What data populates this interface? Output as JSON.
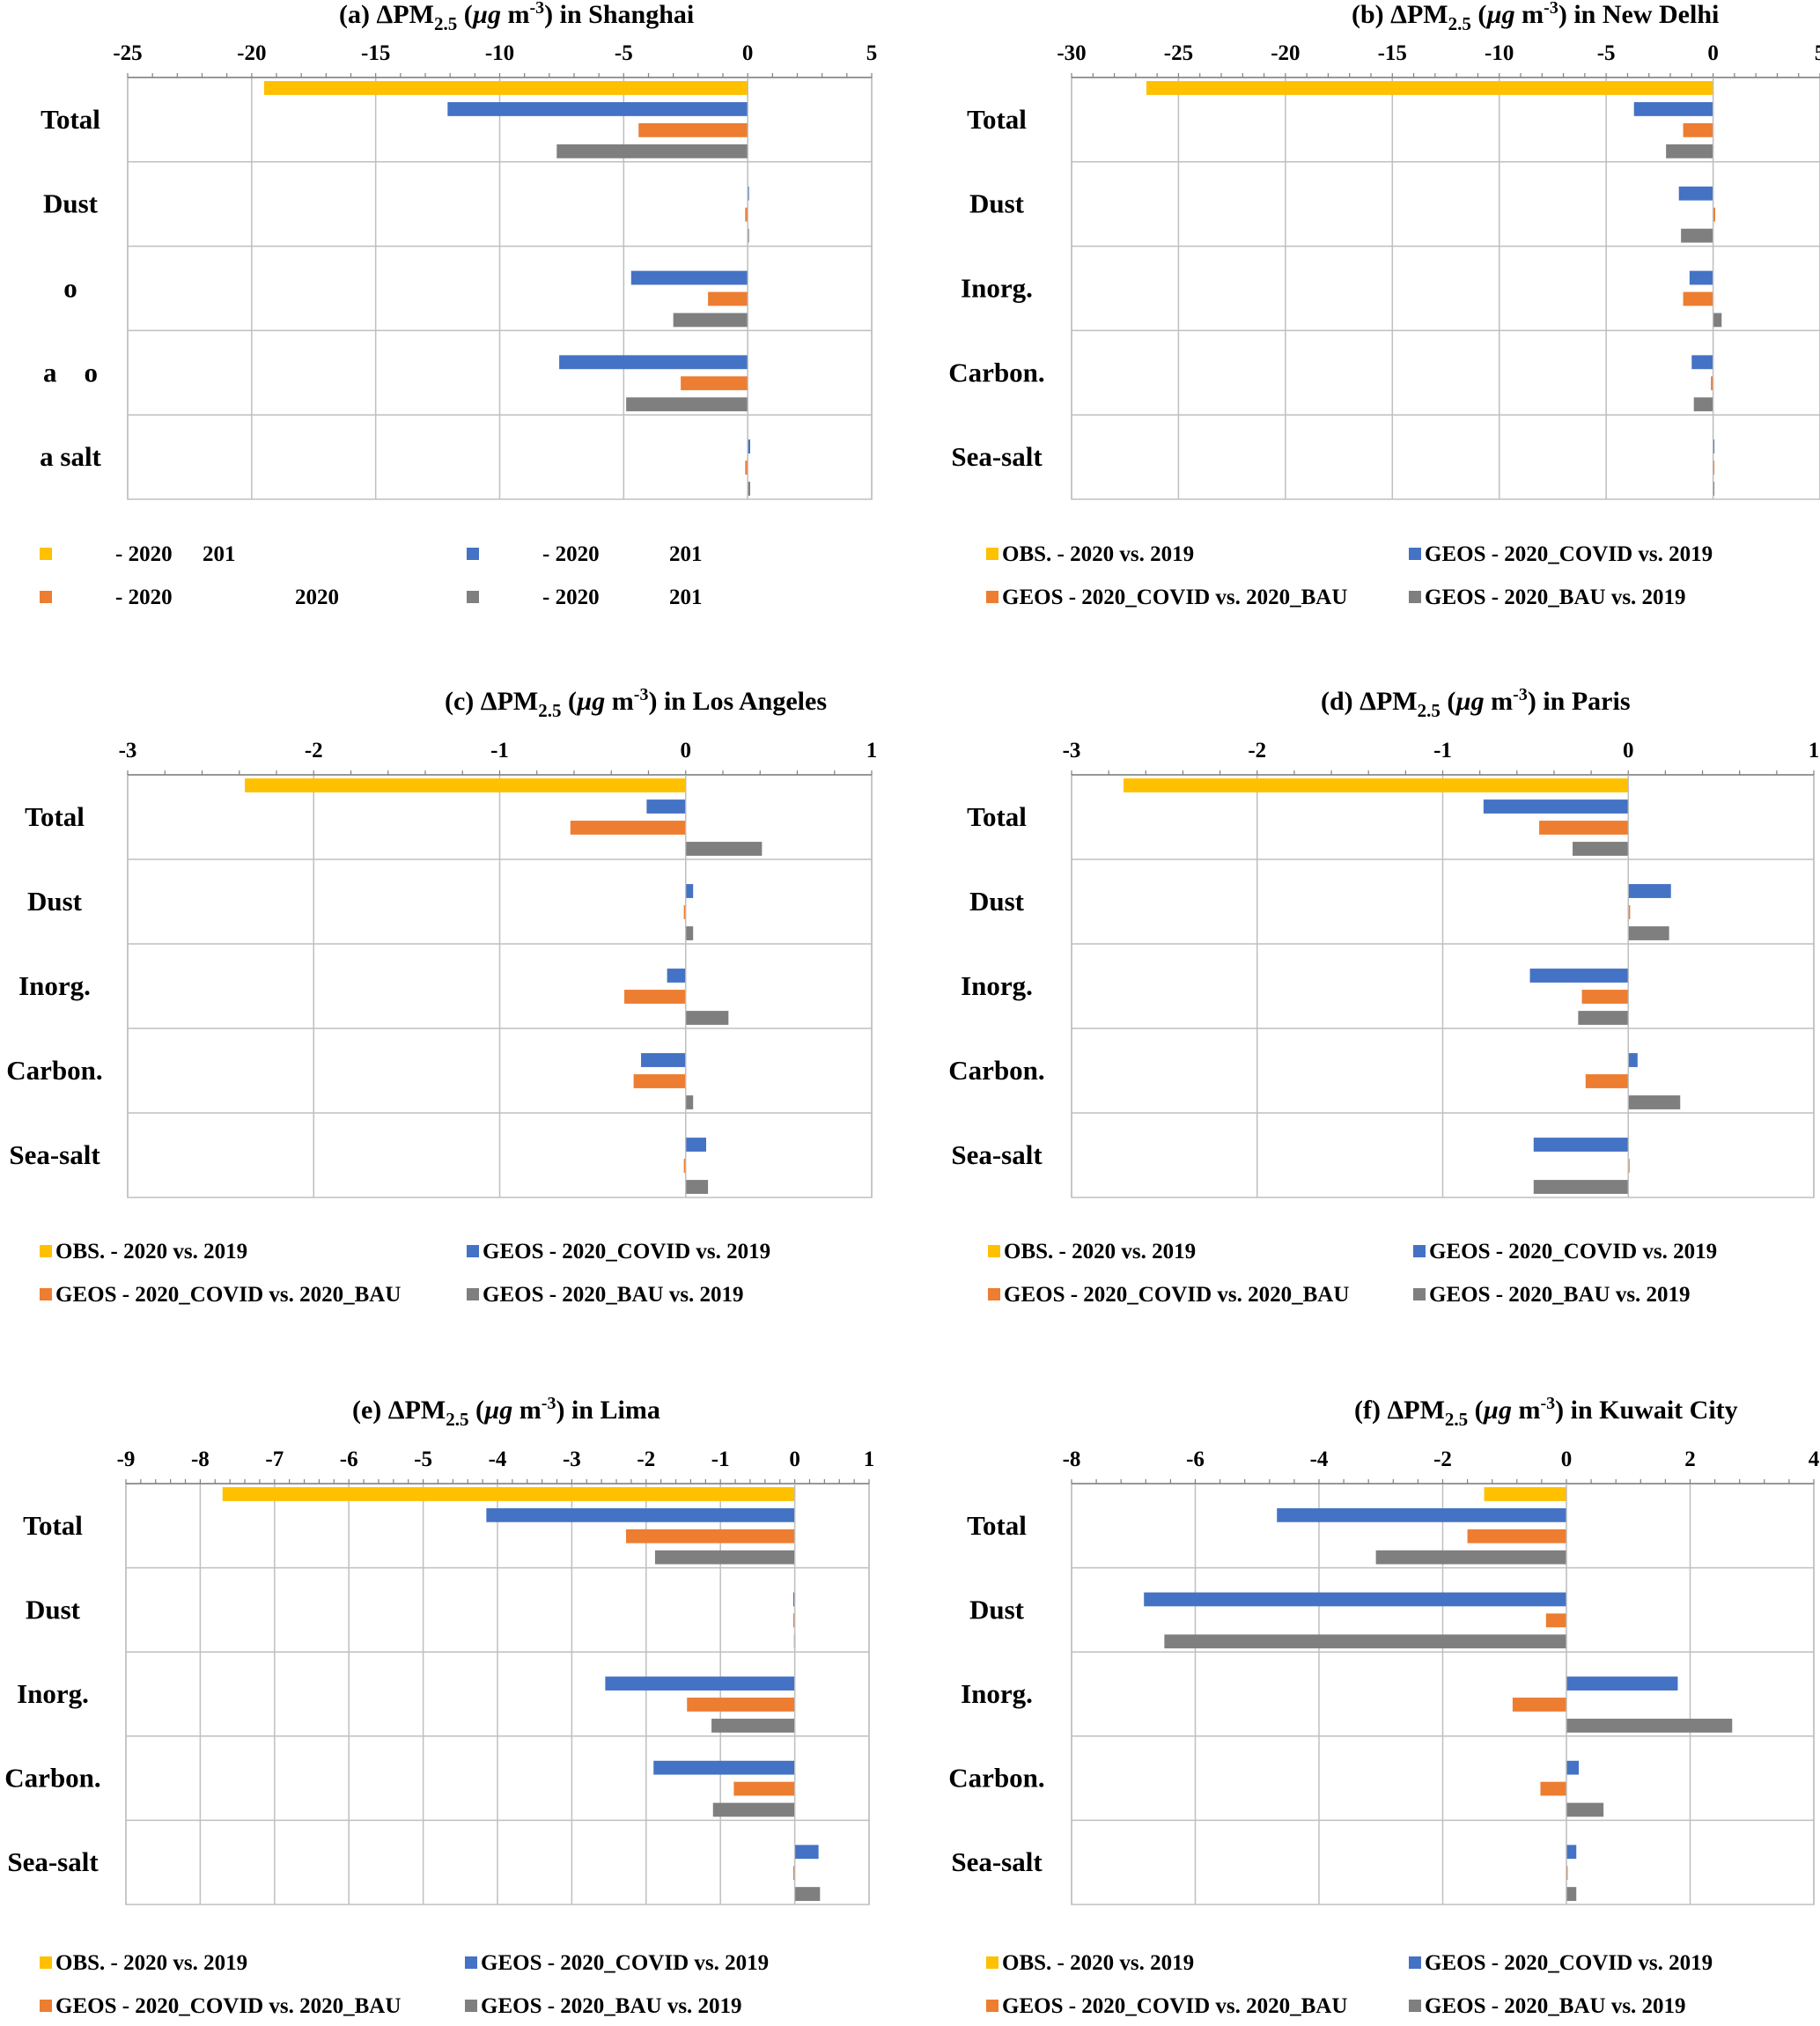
{
  "figure": {
    "legend_labels": [
      "OBS. -  2020 vs. 2019",
      "GEOS - 2020_COVID vs. 2019",
      "GEOS - 2020_COVID vs. 2020_BAU",
      "GEOS - 2020_BAU vs. 2019"
    ],
    "colors": {
      "obs": "#FFC000",
      "covid_vs_2019": "#4472C4",
      "covid_vs_bau": "#ED7D31",
      "bau_vs_2019": "#7F7F7F",
      "grid": "#BFBFBF"
    },
    "categories": [
      "Total",
      "Dust",
      "Inorg.",
      "Carbon.",
      "Sea-salt"
    ]
  },
  "chart_data": [
    {
      "panel": "a",
      "type": "bar",
      "orientation": "horizontal",
      "title": "(a) ΔPM2.5 (µg m-3) in Shanghai",
      "title_parts": {
        "prefix": "(a) ΔPM",
        "sub": "2.5",
        "unit_mid": " m",
        "unit_sup": "-3",
        "place": ") in Shanghai"
      },
      "categories": [
        "Total",
        "Dust",
        "o",
        "a    o",
        "a salt"
      ],
      "xlim": [
        -25,
        5
      ],
      "xticks": [
        -25,
        -20,
        -15,
        -10,
        -5,
        0,
        5
      ],
      "series": [
        {
          "name": "-  2020      201",
          "values": [
            -19.5,
            null,
            null,
            null,
            null
          ]
        },
        {
          "name": "- 2020                201",
          "values": [
            -12.1,
            0.05,
            -4.7,
            -7.6,
            0.1
          ]
        },
        {
          "name": "- 2020             2020",
          "values": [
            -4.4,
            -0.1,
            -1.6,
            -2.7,
            -0.1
          ]
        },
        {
          "name": "- 2020          201",
          "values": [
            -7.7,
            0.05,
            -3.0,
            -4.9,
            0.1
          ]
        }
      ],
      "legend": [
        {
          "text": "-  2020",
          "text2": "201",
          "color": "#FFC000"
        },
        {
          "text": "- 2020",
          "text2": "201",
          "color": "#4472C4"
        },
        {
          "text": "- 2020",
          "text2": "2020",
          "color": "#ED7D31"
        },
        {
          "text": "- 2020",
          "text2": "201",
          "color": "#7F7F7F"
        }
      ]
    },
    {
      "panel": "b",
      "type": "bar",
      "orientation": "horizontal",
      "title": "(b) ΔPM2.5 (µg m-3) in New Delhi",
      "title_parts": {
        "prefix": "(b) ΔPM",
        "sub": "2.5",
        "unit_mid": " m",
        "unit_sup": "-3",
        "place": ")  in New Delhi"
      },
      "categories": [
        "Total",
        "Dust",
        "Inorg.",
        "Carbon.",
        "Sea-salt"
      ],
      "xlim": [
        -30,
        5
      ],
      "xticks": [
        -30,
        -25,
        -20,
        -15,
        -10,
        -5,
        0,
        5
      ],
      "series": [
        {
          "name": "OBS. -  2020 vs. 2019",
          "values": [
            -26.5,
            null,
            null,
            null,
            null
          ]
        },
        {
          "name": "GEOS - 2020_COVID vs. 2019",
          "values": [
            -3.7,
            -1.6,
            -1.1,
            -1.0,
            0.0
          ]
        },
        {
          "name": "GEOS - 2020_COVID vs. 2020_BAU",
          "values": [
            -1.4,
            0.1,
            -1.4,
            -0.1,
            0.0
          ]
        },
        {
          "name": "GEOS - 2020_BAU vs. 2019",
          "values": [
            -2.2,
            -1.5,
            0.4,
            -0.9,
            0.0
          ]
        }
      ]
    },
    {
      "panel": "c",
      "type": "bar",
      "orientation": "horizontal",
      "title": "(c) ΔPM2.5 (µg m-3) in Los Angeles",
      "title_parts": {
        "prefix": "(c) ΔPM",
        "sub": "2.5",
        "unit_mid": " m",
        "unit_sup": "-3",
        "place": ") in Los Angeles"
      },
      "categories": [
        "Total",
        "Dust",
        "Inorg.",
        "Carbon.",
        "Sea-salt"
      ],
      "xlim": [
        -3,
        1
      ],
      "xticks": [
        -3,
        -2,
        -1,
        0,
        1
      ],
      "series": [
        {
          "name": "OBS. -  2020 vs. 2019",
          "values": [
            -2.37,
            null,
            null,
            null,
            null
          ]
        },
        {
          "name": "GEOS - 2020_COVID vs. 2019",
          "values": [
            -0.21,
            0.04,
            -0.1,
            -0.24,
            0.11
          ]
        },
        {
          "name": "GEOS - 2020_COVID vs. 2020_BAU",
          "values": [
            -0.62,
            -0.01,
            -0.33,
            -0.28,
            -0.01
          ]
        },
        {
          "name": "GEOS - 2020_BAU vs. 2019",
          "values": [
            0.41,
            0.04,
            0.23,
            0.04,
            0.12
          ]
        }
      ]
    },
    {
      "panel": "d",
      "type": "bar",
      "orientation": "horizontal",
      "title": "(d) ΔPM2.5 (µg m-3) in Paris",
      "title_parts": {
        "prefix": "(d) ΔPM",
        "sub": "2.5",
        "unit_mid": " m",
        "unit_sup": "-3",
        "place": ") in Paris"
      },
      "categories": [
        "Total",
        "Dust",
        "Inorg.",
        "Carbon.",
        "Sea-salt"
      ],
      "xlim": [
        -3,
        1
      ],
      "xticks": [
        -3,
        -2,
        -1,
        0,
        1
      ],
      "series": [
        {
          "name": "OBS. -  2020 vs. 2019",
          "values": [
            -2.72,
            null,
            null,
            null,
            null
          ]
        },
        {
          "name": "GEOS - 2020_COVID vs. 2019",
          "values": [
            -0.78,
            0.23,
            -0.53,
            0.05,
            -0.51
          ]
        },
        {
          "name": "GEOS - 2020_COVID vs. 2020_BAU",
          "values": [
            -0.48,
            0.01,
            -0.25,
            -0.23,
            0.0
          ]
        },
        {
          "name": "GEOS - 2020_BAU vs. 2019",
          "values": [
            -0.3,
            0.22,
            -0.27,
            0.28,
            -0.51
          ]
        }
      ]
    },
    {
      "panel": "e",
      "type": "bar",
      "orientation": "horizontal",
      "title": "(e) ΔPM2.5 (µg m-3) in Lima",
      "title_parts": {
        "prefix": "(e) ΔPM",
        "sub": "2.5",
        "unit_mid": " m",
        "unit_sup": "-3",
        "place": ") in Lima"
      },
      "categories": [
        "Total",
        "Dust",
        "Inorg.",
        "Carbon.",
        "Sea-salt"
      ],
      "xlim": [
        -9,
        1
      ],
      "xticks": [
        -9,
        -8,
        -7,
        -6,
        -5,
        -4,
        -3,
        -2,
        -1,
        0,
        1
      ],
      "series": [
        {
          "name": "OBS. -  2020 vs. 2019",
          "values": [
            -7.7,
            null,
            null,
            null,
            null
          ]
        },
        {
          "name": "GEOS - 2020_COVID vs. 2019",
          "values": [
            -4.15,
            -0.02,
            -2.55,
            -1.9,
            0.32
          ]
        },
        {
          "name": "GEOS - 2020_COVID vs. 2020_BAU",
          "values": [
            -2.27,
            -0.02,
            -1.45,
            -0.82,
            -0.02
          ]
        },
        {
          "name": "GEOS - 2020_BAU vs. 2019",
          "values": [
            -1.88,
            -0.01,
            -1.12,
            -1.1,
            0.34
          ]
        }
      ]
    },
    {
      "panel": "f",
      "type": "bar",
      "orientation": "horizontal",
      "title": "(f) ΔPM2.5 (µg m-3) in Kuwait City",
      "title_parts": {
        "prefix": "(f) ΔPM",
        "sub": "2.5",
        "unit_mid": " m",
        "unit_sup": "-3",
        "place": ") in Kuwait City"
      },
      "categories": [
        "Total",
        "Dust",
        "Inorg.",
        "Carbon.",
        "Sea-salt"
      ],
      "xlim": [
        -8,
        4
      ],
      "xticks": [
        -8,
        -6,
        -4,
        -2,
        0,
        2,
        4
      ],
      "series": [
        {
          "name": "OBS. -  2020 vs. 2019",
          "values": [
            -1.33,
            null,
            null,
            null,
            null
          ]
        },
        {
          "name": "GEOS - 2020_COVID vs. 2019",
          "values": [
            -4.68,
            -6.83,
            1.8,
            0.2,
            0.16
          ]
        },
        {
          "name": "GEOS - 2020_COVID vs. 2020_BAU",
          "values": [
            -1.6,
            -0.33,
            -0.87,
            -0.42,
            0.0
          ]
        },
        {
          "name": "GEOS - 2020_BAU vs. 2019",
          "values": [
            -3.08,
            -6.5,
            2.68,
            0.6,
            0.16
          ]
        }
      ]
    }
  ]
}
